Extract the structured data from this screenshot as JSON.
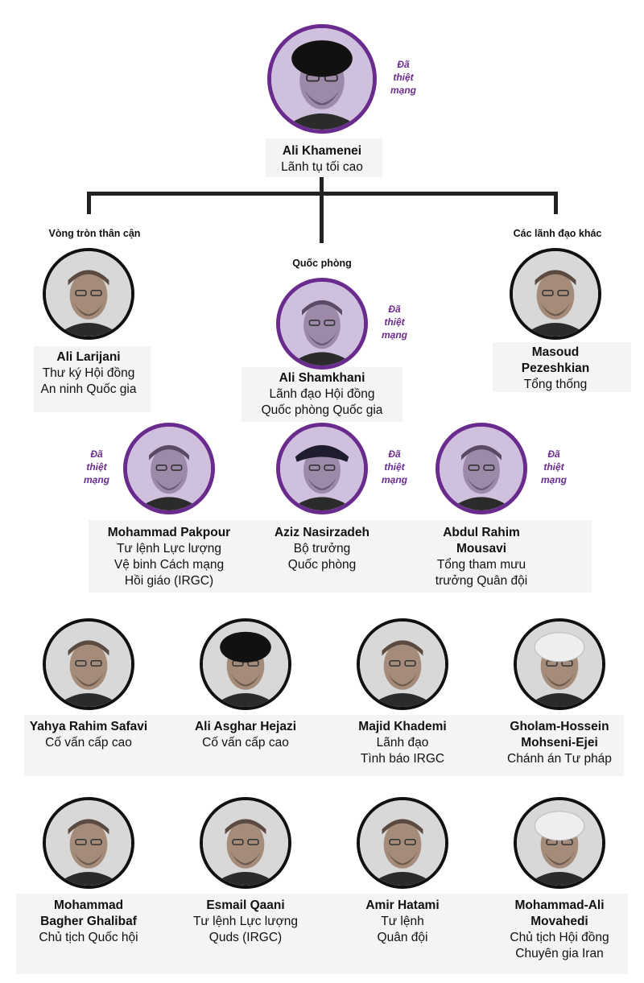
{
  "colors": {
    "killed": "#6a2b8e",
    "killed_bg": "#cfc0dd",
    "normal_bg": "#d8d8d8",
    "line": "#222222"
  },
  "groups": {
    "inner": "Vòng tròn thân cận",
    "defense": "Quốc phòng",
    "others": "Các lãnh đạo khác"
  },
  "killed_tag": "Đã\nthiệt\nmạng",
  "people": {
    "khamenei": {
      "name": "Ali Khamenei",
      "role": "Lãnh tụ tối cao"
    },
    "larijani": {
      "name": "Ali Larijani",
      "role": "Thư ký Hội đồng\nAn ninh Quốc gia"
    },
    "shamkhani": {
      "name": "Ali Shamkhani",
      "role": "Lãnh đạo Hội đồng\nQuốc phòng Quốc gia"
    },
    "pezeshkian": {
      "name": "Masoud\nPezeshkian",
      "role": "Tổng thống"
    },
    "pakpour": {
      "name": "Mohammad Pakpour",
      "role": "Tư lệnh Lực lượng\nVệ binh Cách mạng\nHồi giáo (IRGC)"
    },
    "nasirzadeh": {
      "name": "Aziz Nasirzadeh",
      "role": "Bộ trưởng\nQuốc phòng"
    },
    "mousavi": {
      "name": "Abdul Rahim\nMousavi",
      "role": "Tổng tham mưu\ntrưởng Quân đội"
    },
    "safavi": {
      "name": "Yahya Rahim Safavi",
      "role": "Cố vấn cấp cao"
    },
    "hejazi": {
      "name": "Ali Asghar Hejazi",
      "role": "Cố vấn cấp cao"
    },
    "khademi": {
      "name": "Majid Khademi",
      "role": "Lãnh đạo\nTình báo IRGC"
    },
    "ejei": {
      "name": "Gholam-Hossein\nMohseni-Ejei",
      "role": "Chánh án Tư pháp"
    },
    "ghalibaf": {
      "name": "Mohammad\nBagher Ghalibaf",
      "role": "Chủ tịch Quốc hội"
    },
    "qaani": {
      "name": "Esmail Qaani",
      "role": "Tư lệnh Lực lượng\nQuds (IRGC)"
    },
    "hatami": {
      "name": "Amir Hatami",
      "role": "Tư lệnh\nQuân đội"
    },
    "movahedi": {
      "name": "Mohammad-Ali\nMovahedi",
      "role": "Chủ tịch Hội đồng\nChuyên gia Iran"
    }
  }
}
